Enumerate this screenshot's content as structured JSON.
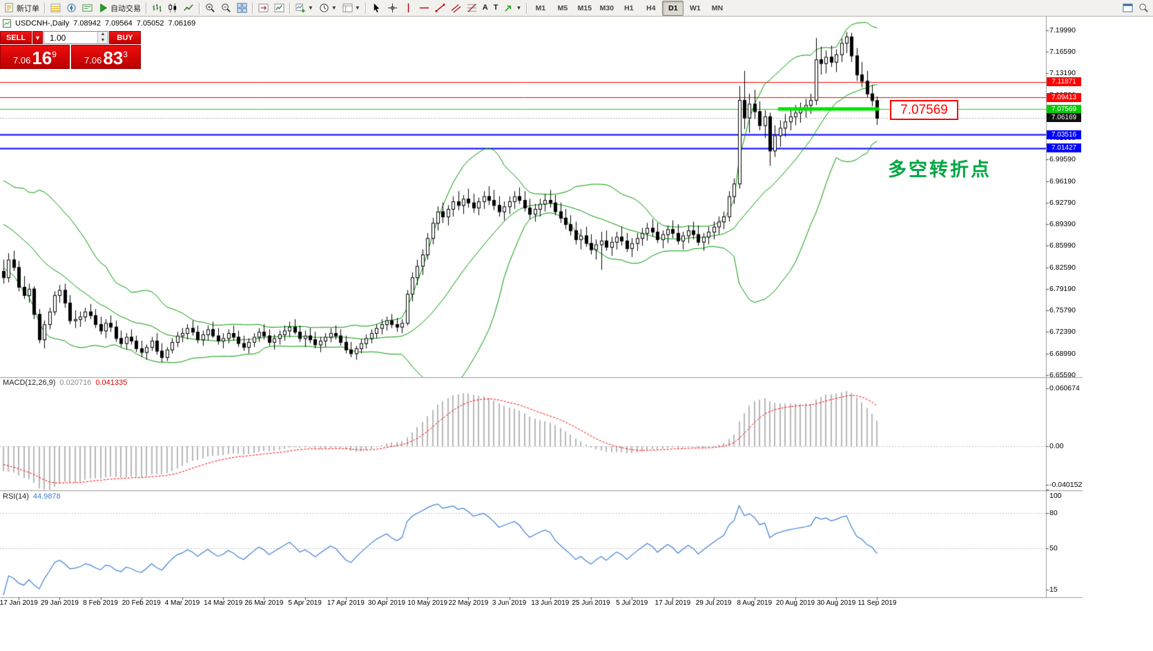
{
  "toolbar": {
    "new_order_label": "新订单",
    "autotrading_label": "自动交易",
    "timeframes": [
      "M1",
      "M5",
      "M15",
      "M30",
      "H1",
      "H4",
      "D1",
      "W1",
      "MN"
    ],
    "active_timeframe": "D1"
  },
  "symbol_header": {
    "name": "USDCNH-,Daily",
    "open": "7.08942",
    "high": "7.09564",
    "low": "7.05052",
    "close": "7.06169"
  },
  "ticket": {
    "sell_label": "SELL",
    "buy_label": "BUY",
    "volume": "1.00",
    "sell_price": {
      "big": "7.06",
      "mid": "16",
      "sup": "9"
    },
    "buy_price": {
      "big": "7.06",
      "mid": "83",
      "sup": "3"
    }
  },
  "indicator_headers": {
    "macd_label": "MACD(12,26,9)",
    "macd_main_value": "0.020716",
    "macd_signal_value": "0.041335",
    "rsi_label": "RSI(14)",
    "rsi_value": "44.9878"
  },
  "annotations": {
    "price_callout": "7.07569",
    "turning_point_text": "多空转折点",
    "turning_point_color": "#00a643",
    "callout_color": "#ff0000"
  },
  "price_tags": [
    {
      "label": "7.11871",
      "bg": "#ff0000",
      "price": 7.11871
    },
    {
      "label": "7.09413",
      "bg": "#ff0000",
      "price": 7.09413
    },
    {
      "label": "7.07569",
      "bg": "#00cc00",
      "price": 7.07569
    },
    {
      "label": "7.06169",
      "bg": "#111111",
      "price": 7.06169
    },
    {
      "label": "7.03516",
      "bg": "#0000ff",
      "price": 7.03516
    },
    {
      "label": "7.01427",
      "bg": "#0000ff",
      "price": 7.01427
    }
  ],
  "chart_data": {
    "type": "candlestick",
    "symbol": "USDCNH-",
    "timeframe": "Daily",
    "price_axis_ticks": [
      "7.19990",
      "7.16590",
      "7.13190",
      "7.09790",
      "7.06390",
      "7.02990",
      "6.99590",
      "6.96190",
      "6.92790",
      "6.89390",
      "6.85990",
      "6.82590",
      "6.79190",
      "6.75790",
      "6.72390",
      "6.68990",
      "6.65590"
    ],
    "macd_axis_ticks": [
      "0.060674",
      "0.00",
      "-0.040152"
    ],
    "rsi_axis_ticks": [
      "100",
      "80",
      "50",
      "15"
    ],
    "time_labels": [
      "17 Jan 2019",
      "29 Jan 2019",
      "8 Feb 2019",
      "20 Feb 2019",
      "4 Mar 2019",
      "14 Mar 2019",
      "26 Mar 2019",
      "5 Apr 2019",
      "17 Apr 2019",
      "30 Apr 2019",
      "10 May 2019",
      "22 May 2019",
      "3 Jun 2019",
      "13 Jun 2019",
      "25 Jun 2019",
      "5 Jul 2019",
      "17 Jul 2019",
      "29 Jul 2019",
      "8 Aug 2019",
      "20 Aug 2019",
      "30 Aug 2019",
      "11 Sep 2019"
    ],
    "hlines": [
      {
        "price": 7.11871,
        "color": "#ff0000",
        "width": 1
      },
      {
        "price": 7.09413,
        "color": "#ff0000",
        "width": 1
      },
      {
        "price": 7.07569,
        "color": "#00dd00",
        "width": 1
      },
      {
        "price": 7.03516,
        "color": "#0000ff",
        "width": 2
      },
      {
        "price": 7.01427,
        "color": "#0000ff",
        "width": 2
      }
    ],
    "bid_line": {
      "price": 7.06169,
      "color": "#aaaaaa"
    },
    "thick_segment": {
      "price": 7.07569,
      "from_bar": 152,
      "to_bar": 171,
      "color": "#00e400",
      "width": 5
    },
    "bollinger": {
      "period": 20,
      "deviations": 2,
      "color": "#009900"
    },
    "macd": {
      "fast": 12,
      "slow": 26,
      "signal": 9,
      "histogram_color": "#b8b8b8",
      "signal_color": "#ff0000",
      "axis_max": 0.060674,
      "axis_min": -0.040152
    },
    "rsi": {
      "period": 14,
      "color": "#3f7fd4",
      "levels": [
        80,
        50
      ]
    },
    "warmup_closes": [
      6.948,
      6.94,
      6.944,
      6.935,
      6.928,
      6.932,
      6.922,
      6.915,
      6.908,
      6.9,
      6.894,
      6.886,
      6.89,
      6.88,
      6.884,
      6.874,
      6.866,
      6.87,
      6.858,
      6.84
    ],
    "candles": [
      [
        6.82,
        6.838,
        6.8,
        6.81
      ],
      [
        6.81,
        6.848,
        6.802,
        6.838
      ],
      [
        6.838,
        6.852,
        6.82,
        6.826
      ],
      [
        6.826,
        6.836,
        6.788,
        6.795
      ],
      [
        6.795,
        6.812,
        6.776,
        6.782
      ],
      [
        6.782,
        6.8,
        6.77,
        6.792
      ],
      [
        6.792,
        6.796,
        6.744,
        6.752
      ],
      [
        6.752,
        6.76,
        6.706,
        6.712
      ],
      [
        6.712,
        6.742,
        6.698,
        6.736
      ],
      [
        6.736,
        6.762,
        6.728,
        6.756
      ],
      [
        6.756,
        6.788,
        6.75,
        6.782
      ],
      [
        6.782,
        6.798,
        6.77,
        6.79
      ],
      [
        6.79,
        6.8,
        6.762,
        6.77
      ],
      [
        6.77,
        6.782,
        6.736,
        6.742
      ],
      [
        6.742,
        6.758,
        6.73,
        6.744
      ],
      [
        6.744,
        6.756,
        6.732,
        6.748
      ],
      [
        6.748,
        6.762,
        6.74,
        6.756
      ],
      [
        6.756,
        6.768,
        6.744,
        6.75
      ],
      [
        6.75,
        6.76,
        6.73,
        6.736
      ],
      [
        6.736,
        6.748,
        6.72,
        6.726
      ],
      [
        6.726,
        6.744,
        6.714,
        6.738
      ],
      [
        6.738,
        6.75,
        6.724,
        6.732
      ],
      [
        6.732,
        6.742,
        6.708,
        6.714
      ],
      [
        6.714,
        6.726,
        6.7,
        6.706
      ],
      [
        6.706,
        6.722,
        6.696,
        6.716
      ],
      [
        6.716,
        6.728,
        6.704,
        6.71
      ],
      [
        6.71,
        6.718,
        6.692,
        6.698
      ],
      [
        6.698,
        6.71,
        6.684,
        6.692
      ],
      [
        6.692,
        6.704,
        6.68,
        6.7
      ],
      [
        6.7,
        6.716,
        6.694,
        6.71
      ],
      [
        6.71,
        6.722,
        6.688,
        6.694
      ],
      [
        6.694,
        6.706,
        6.676,
        6.684
      ],
      [
        6.684,
        6.7,
        6.678,
        6.696
      ],
      [
        6.696,
        6.714,
        6.69,
        6.708
      ],
      [
        6.708,
        6.724,
        6.7,
        6.718
      ],
      [
        6.718,
        6.73,
        6.708,
        6.722
      ],
      [
        6.722,
        6.736,
        6.712,
        6.73
      ],
      [
        6.73,
        6.742,
        6.718,
        6.724
      ],
      [
        6.724,
        6.734,
        6.706,
        6.712
      ],
      [
        6.712,
        6.726,
        6.702,
        6.72
      ],
      [
        6.72,
        6.734,
        6.71,
        6.728
      ],
      [
        6.728,
        6.74,
        6.714,
        6.718
      ],
      [
        6.718,
        6.73,
        6.704,
        6.71
      ],
      [
        6.71,
        6.722,
        6.698,
        6.714
      ],
      [
        6.714,
        6.728,
        6.706,
        6.722
      ],
      [
        6.722,
        6.734,
        6.71,
        6.716
      ],
      [
        6.716,
        6.726,
        6.7,
        6.706
      ],
      [
        6.706,
        6.718,
        6.694,
        6.7
      ],
      [
        6.7,
        6.714,
        6.69,
        6.708
      ],
      [
        6.708,
        6.722,
        6.7,
        6.716
      ],
      [
        6.716,
        6.73,
        6.708,
        6.724
      ],
      [
        6.724,
        6.736,
        6.712,
        6.718
      ],
      [
        6.718,
        6.728,
        6.702,
        6.708
      ],
      [
        6.708,
        6.72,
        6.696,
        6.714
      ],
      [
        6.714,
        6.726,
        6.704,
        6.72
      ],
      [
        6.72,
        6.734,
        6.71,
        6.726
      ],
      [
        6.726,
        6.74,
        6.716,
        6.732
      ],
      [
        6.732,
        6.744,
        6.72,
        6.724
      ],
      [
        6.724,
        6.734,
        6.708,
        6.714
      ],
      [
        6.714,
        6.726,
        6.7,
        6.718
      ],
      [
        6.718,
        6.73,
        6.706,
        6.712
      ],
      [
        6.712,
        6.724,
        6.698,
        6.704
      ],
      [
        6.704,
        6.716,
        6.692,
        6.71
      ],
      [
        6.71,
        6.722,
        6.7,
        6.716
      ],
      [
        6.716,
        6.73,
        6.708,
        6.722
      ],
      [
        6.722,
        6.734,
        6.712,
        6.718
      ],
      [
        6.718,
        6.728,
        6.702,
        6.708
      ],
      [
        6.708,
        6.718,
        6.69,
        6.696
      ],
      [
        6.696,
        6.708,
        6.684,
        6.69
      ],
      [
        6.69,
        6.702,
        6.68,
        6.698
      ],
      [
        6.698,
        6.712,
        6.69,
        6.706
      ],
      [
        6.706,
        6.72,
        6.698,
        6.714
      ],
      [
        6.714,
        6.728,
        6.706,
        6.722
      ],
      [
        6.722,
        6.736,
        6.714,
        6.73
      ],
      [
        6.73,
        6.744,
        6.72,
        6.736
      ],
      [
        6.736,
        6.748,
        6.726,
        6.742
      ],
      [
        6.742,
        6.752,
        6.73,
        6.736
      ],
      [
        6.736,
        6.746,
        6.724,
        6.732
      ],
      [
        6.732,
        6.744,
        6.722,
        6.738
      ],
      [
        6.738,
        6.79,
        6.734,
        6.784
      ],
      [
        6.784,
        6.818,
        6.772,
        6.81
      ],
      [
        6.81,
        6.838,
        6.798,
        6.828
      ],
      [
        6.828,
        6.854,
        6.814,
        6.846
      ],
      [
        6.846,
        6.88,
        6.838,
        6.872
      ],
      [
        6.872,
        6.904,
        6.862,
        6.896
      ],
      [
        6.896,
        6.922,
        6.884,
        6.914
      ],
      [
        6.914,
        6.928,
        6.896,
        6.906
      ],
      [
        6.906,
        6.924,
        6.892,
        6.918
      ],
      [
        6.918,
        6.938,
        6.906,
        6.93
      ],
      [
        6.93,
        6.946,
        6.916,
        6.924
      ],
      [
        6.924,
        6.94,
        6.91,
        6.934
      ],
      [
        6.934,
        6.95,
        6.92,
        6.928
      ],
      [
        6.928,
        6.942,
        6.912,
        6.92
      ],
      [
        6.92,
        6.936,
        6.908,
        6.93
      ],
      [
        6.93,
        6.946,
        6.918,
        6.938
      ],
      [
        6.938,
        6.954,
        6.924,
        6.932
      ],
      [
        6.932,
        6.948,
        6.916,
        6.924
      ],
      [
        6.924,
        6.938,
        6.906,
        6.914
      ],
      [
        6.914,
        6.93,
        6.9,
        6.922
      ],
      [
        6.922,
        6.938,
        6.91,
        6.93
      ],
      [
        6.93,
        6.946,
        6.918,
        6.938
      ],
      [
        6.938,
        6.952,
        6.926,
        6.932
      ],
      [
        6.932,
        6.946,
        6.914,
        6.92
      ],
      [
        6.92,
        6.934,
        6.902,
        6.91
      ],
      [
        6.91,
        6.926,
        6.898,
        6.918
      ],
      [
        6.918,
        6.934,
        6.906,
        6.926
      ],
      [
        6.926,
        6.942,
        6.914,
        6.932
      ],
      [
        6.932,
        6.948,
        6.92,
        6.928
      ],
      [
        6.928,
        6.94,
        6.908,
        6.914
      ],
      [
        6.914,
        6.928,
        6.896,
        6.904
      ],
      [
        6.904,
        6.918,
        6.886,
        6.894
      ],
      [
        6.894,
        6.908,
        6.876,
        6.884
      ],
      [
        6.884,
        6.898,
        6.862,
        6.87
      ],
      [
        6.87,
        6.886,
        6.854,
        6.876
      ],
      [
        6.876,
        6.89,
        6.858,
        6.864
      ],
      [
        6.864,
        6.878,
        6.846,
        6.854
      ],
      [
        6.854,
        6.87,
        6.838,
        6.862
      ],
      [
        6.862,
        6.882,
        6.822,
        6.868
      ],
      [
        6.868,
        6.884,
        6.852,
        6.858
      ],
      [
        6.858,
        6.874,
        6.844,
        6.866
      ],
      [
        6.866,
        6.882,
        6.854,
        6.874
      ],
      [
        6.874,
        6.89,
        6.86,
        6.868
      ],
      [
        6.868,
        6.88,
        6.85,
        6.856
      ],
      [
        6.856,
        6.872,
        6.842,
        6.864
      ],
      [
        6.864,
        6.88,
        6.852,
        6.872
      ],
      [
        6.872,
        6.888,
        6.86,
        6.88
      ],
      [
        6.88,
        6.896,
        6.868,
        6.888
      ],
      [
        6.888,
        6.902,
        6.874,
        6.882
      ],
      [
        6.882,
        6.896,
        6.864,
        6.87
      ],
      [
        6.87,
        6.884,
        6.856,
        6.878
      ],
      [
        6.878,
        6.892,
        6.864,
        6.886
      ],
      [
        6.886,
        6.9,
        6.872,
        6.88
      ],
      [
        6.88,
        6.894,
        6.862,
        6.868
      ],
      [
        6.868,
        6.882,
        6.854,
        6.876
      ],
      [
        6.876,
        6.892,
        6.864,
        6.884
      ],
      [
        6.884,
        6.898,
        6.87,
        6.878
      ],
      [
        6.878,
        6.892,
        6.86,
        6.866
      ],
      [
        6.866,
        6.88,
        6.852,
        6.874
      ],
      [
        6.874,
        6.89,
        6.862,
        6.882
      ],
      [
        6.882,
        6.898,
        6.87,
        6.89
      ],
      [
        6.89,
        6.906,
        6.878,
        6.898
      ],
      [
        6.898,
        6.914,
        6.886,
        6.906
      ],
      [
        6.906,
        6.946,
        6.898,
        6.938
      ],
      [
        6.938,
        6.966,
        6.926,
        6.958
      ],
      [
        6.958,
        7.112,
        6.95,
        7.09
      ],
      [
        7.09,
        7.136,
        7.044,
        7.062
      ],
      [
        7.062,
        7.1,
        7.038,
        7.084
      ],
      [
        7.084,
        7.106,
        7.06,
        7.072
      ],
      [
        7.072,
        7.088,
        7.042,
        7.05
      ],
      [
        7.05,
        7.074,
        7.03,
        7.064
      ],
      [
        7.064,
        7.07,
        6.986,
        7.01
      ],
      [
        7.01,
        7.05,
        7.0,
        7.034
      ],
      [
        7.034,
        7.058,
        7.016,
        7.046
      ],
      [
        7.046,
        7.068,
        7.032,
        7.056
      ],
      [
        7.056,
        7.074,
        7.042,
        7.064
      ],
      [
        7.064,
        7.082,
        7.05,
        7.07
      ],
      [
        7.07,
        7.086,
        7.054,
        7.076
      ],
      [
        7.076,
        7.092,
        7.062,
        7.082
      ],
      [
        7.082,
        7.1,
        7.068,
        7.09
      ],
      [
        7.09,
        7.188,
        7.082,
        7.154
      ],
      [
        7.154,
        7.174,
        7.13,
        7.148
      ],
      [
        7.148,
        7.168,
        7.132,
        7.158
      ],
      [
        7.158,
        7.176,
        7.142,
        7.15
      ],
      [
        7.15,
        7.17,
        7.134,
        7.162
      ],
      [
        7.162,
        7.187,
        7.15,
        7.18
      ],
      [
        7.18,
        7.197,
        7.164,
        7.19
      ],
      [
        7.19,
        7.196,
        7.15,
        7.16
      ],
      [
        7.16,
        7.172,
        7.12,
        7.13
      ],
      [
        7.13,
        7.15,
        7.11,
        7.12
      ],
      [
        7.12,
        7.136,
        7.094,
        7.1
      ],
      [
        7.1,
        7.114,
        7.08,
        7.0894
      ],
      [
        7.0894,
        7.0956,
        7.0505,
        7.0617
      ]
    ]
  }
}
